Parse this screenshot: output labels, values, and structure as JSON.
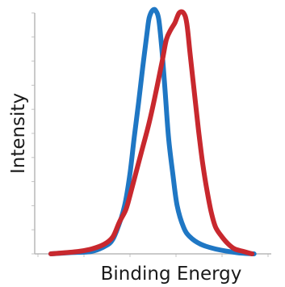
{
  "chart_data": {
    "type": "line",
    "title": "",
    "xlabel": "Binding Energy",
    "ylabel": "Intensity",
    "xlim": [
      0,
      100
    ],
    "ylim": [
      0,
      100
    ],
    "grid": false,
    "legend": "none",
    "series": [
      {
        "color": "#1f77c4",
        "points": [
          [
            3,
            0
          ],
          [
            12,
            0.5
          ],
          [
            22,
            1
          ],
          [
            28,
            3
          ],
          [
            32,
            6
          ],
          [
            36,
            15
          ],
          [
            38,
            22
          ],
          [
            40,
            33
          ],
          [
            42,
            48
          ],
          [
            44,
            62
          ],
          [
            46,
            77
          ],
          [
            48,
            91
          ],
          [
            49,
            97
          ],
          [
            50.5,
            100
          ],
          [
            52,
            100
          ],
          [
            53.5,
            96
          ],
          [
            55,
            83
          ],
          [
            56.5,
            66
          ],
          [
            58,
            48
          ],
          [
            60,
            33
          ],
          [
            62,
            20
          ],
          [
            65,
            11
          ],
          [
            68,
            7
          ],
          [
            73,
            4
          ],
          [
            80,
            2
          ],
          [
            90,
            0.5
          ],
          [
            98,
            0
          ]
        ]
      },
      {
        "color": "#c8282e",
        "points": [
          [
            3,
            0
          ],
          [
            10,
            0.5
          ],
          [
            16,
            1
          ],
          [
            22,
            2
          ],
          [
            28,
            4
          ],
          [
            32,
            7
          ],
          [
            35,
            13
          ],
          [
            38,
            18
          ],
          [
            40,
            24
          ],
          [
            43,
            34
          ],
          [
            46,
            44
          ],
          [
            49,
            54
          ],
          [
            52,
            66
          ],
          [
            55,
            79
          ],
          [
            57,
            88
          ],
          [
            59,
            92
          ],
          [
            61,
            95
          ],
          [
            63,
            99
          ],
          [
            65,
            99
          ],
          [
            66.5,
            95
          ],
          [
            68,
            83
          ],
          [
            70,
            67
          ],
          [
            72,
            51
          ],
          [
            74,
            37
          ],
          [
            76,
            26
          ],
          [
            78,
            17
          ],
          [
            80,
            11
          ],
          [
            83,
            7
          ],
          [
            86,
            4
          ],
          [
            89,
            2
          ],
          [
            93,
            1
          ],
          [
            97,
            0
          ]
        ]
      }
    ]
  }
}
